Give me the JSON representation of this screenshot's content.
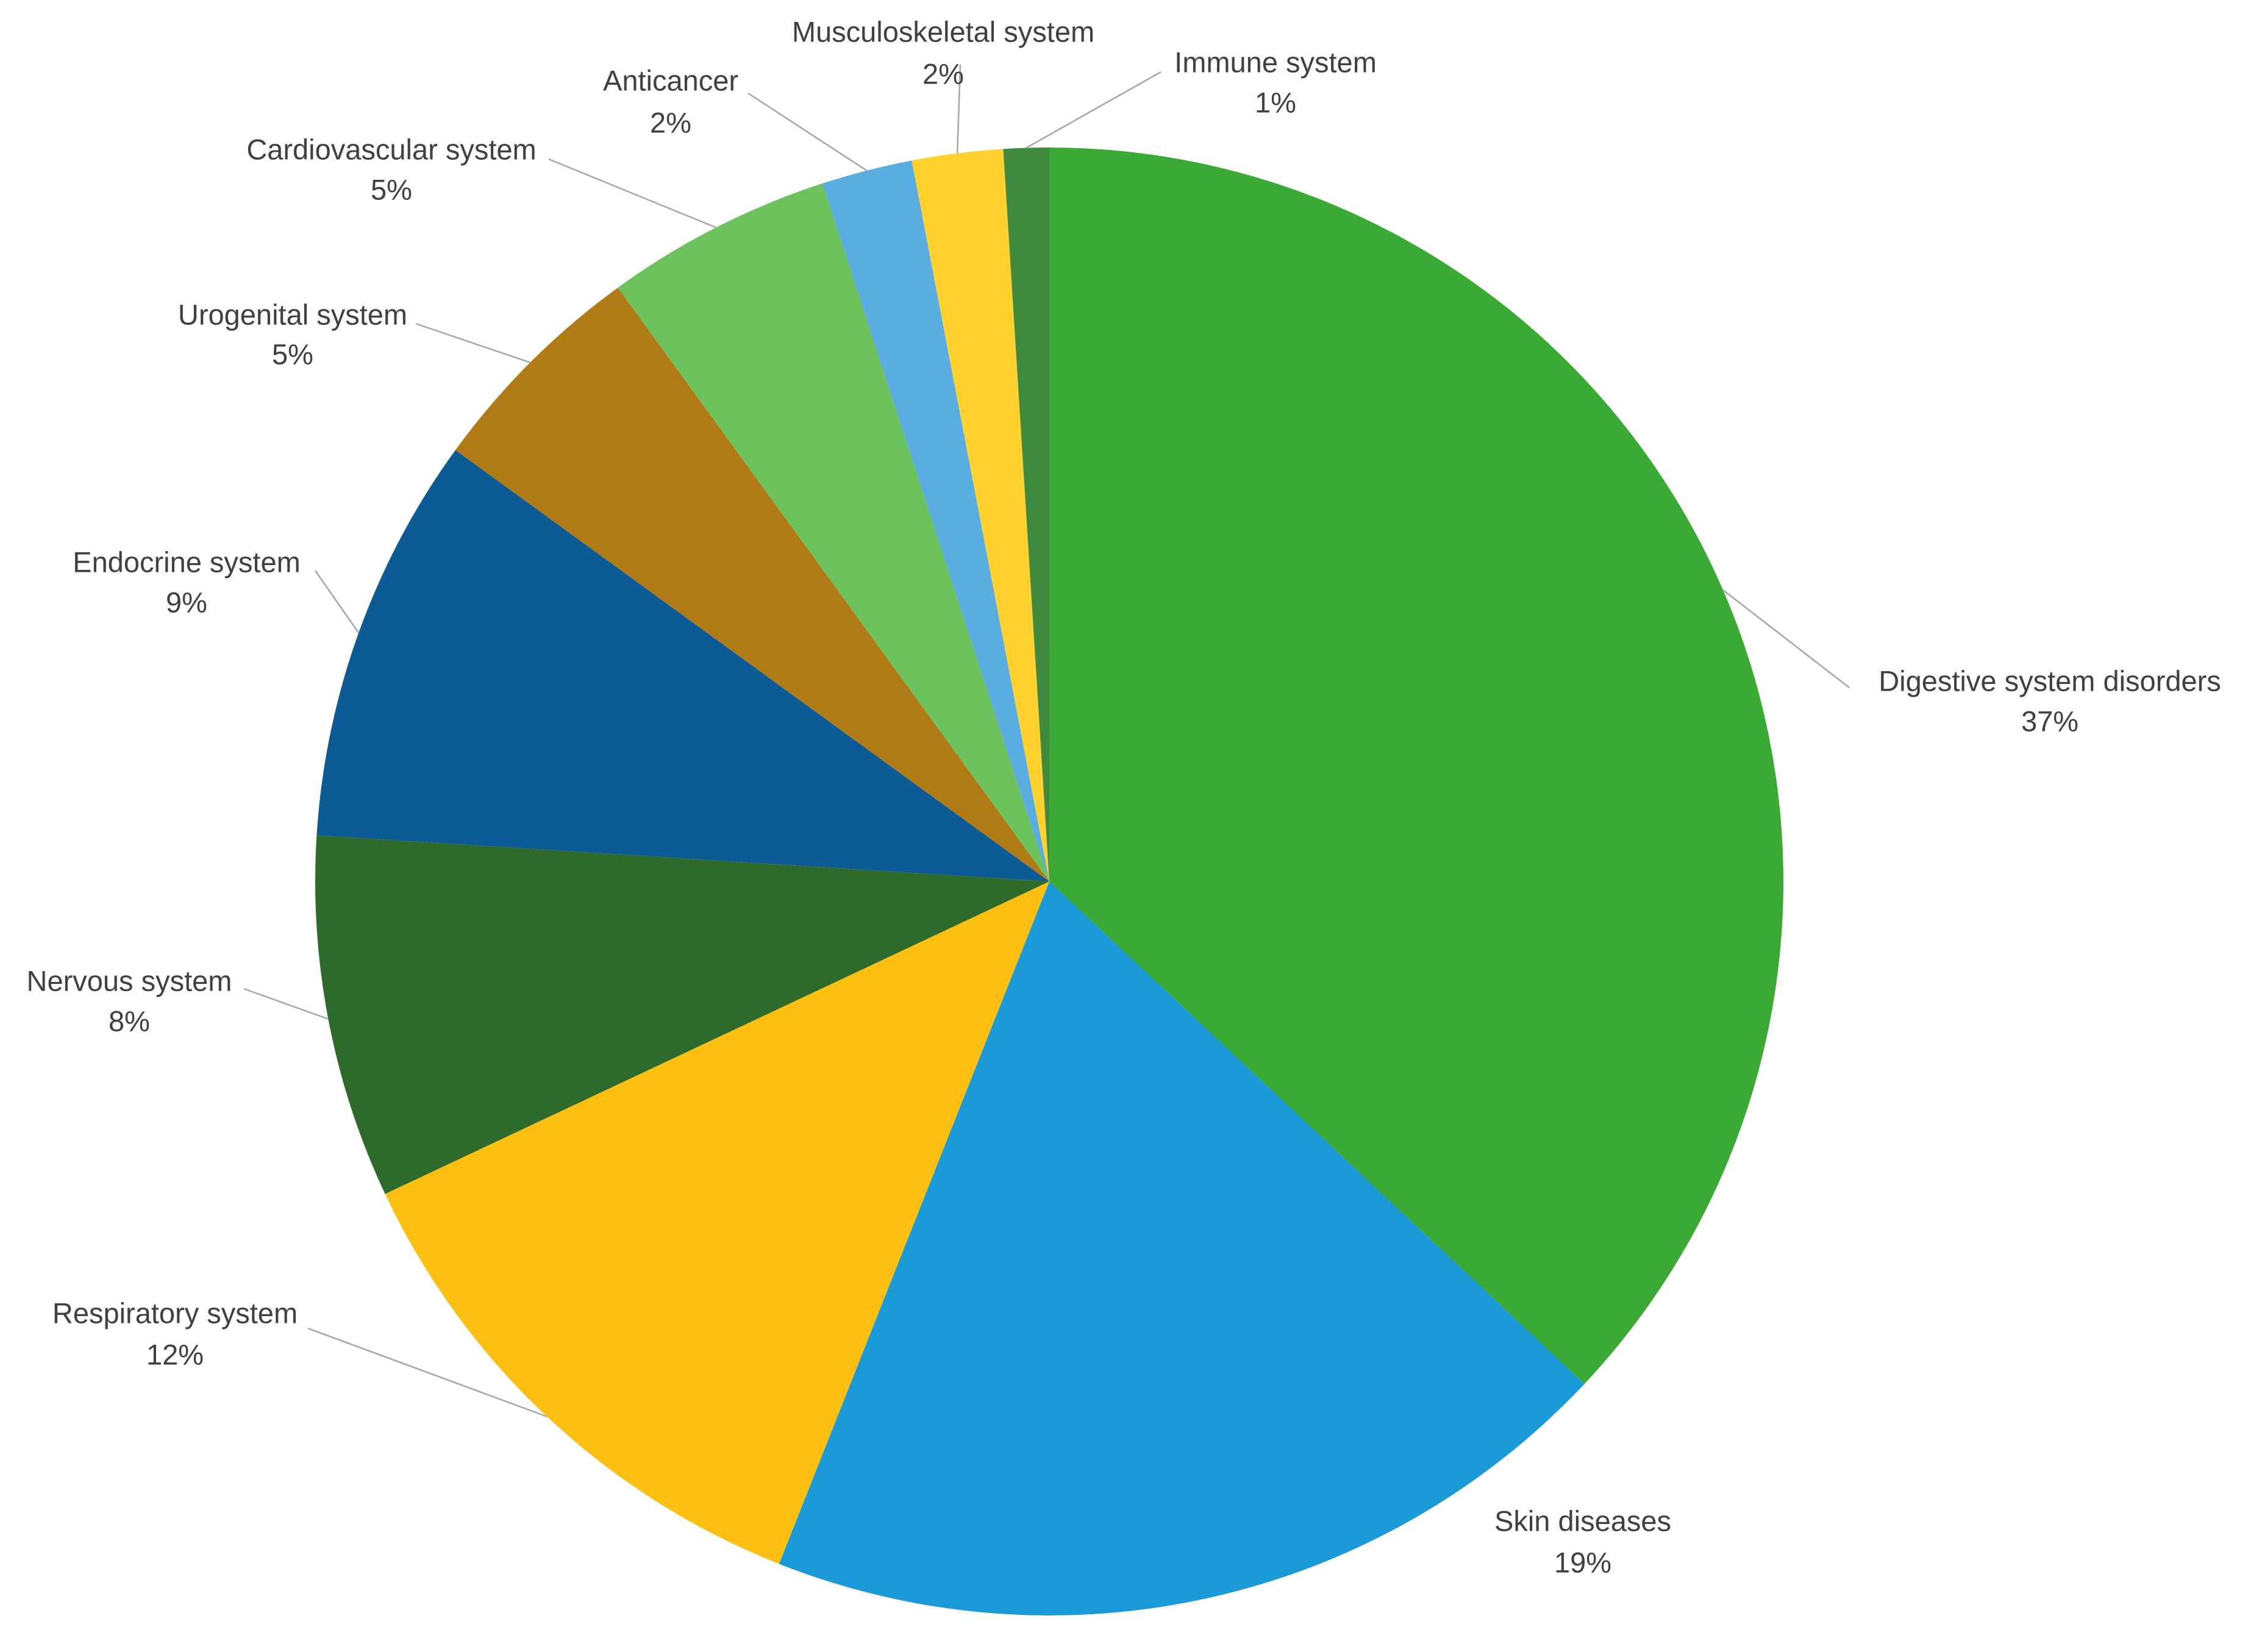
{
  "chart_data": {
    "type": "pie",
    "categories": [
      "Digestive system disorders",
      "Skin diseases",
      "Respiratory system",
      "Nervous system",
      "Endocrine system",
      "Urogenital system",
      "Cardiovascular system",
      "Anticancer",
      "Musculoskeletal system",
      "Immune system"
    ],
    "values": [
      37,
      19,
      12,
      8,
      9,
      5,
      5,
      2,
      2,
      1
    ],
    "value_labels": [
      "37%",
      "19%",
      "12%",
      "8%",
      "9%",
      "5%",
      "5%",
      "2%",
      "2%",
      "1%"
    ],
    "colors": [
      "#3aaa35",
      "#1a9ad6",
      "#fdc010",
      "#2e6b2a",
      "#0c5a96",
      "#b07a14",
      "#6cc35d",
      "#5aade0",
      "#ffd22e",
      "#3f8a3e"
    ]
  }
}
